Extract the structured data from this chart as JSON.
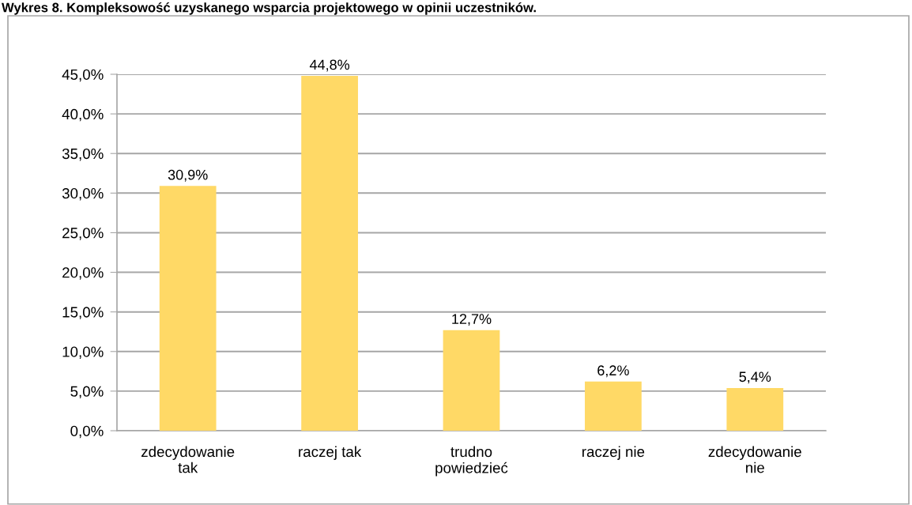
{
  "chart_data": {
    "type": "bar",
    "title": "Wykres 8. Kompleksowość uzyskanego wsparcia projektowego w opinii uczestników.",
    "categories": [
      "zdecydowanie\ntak",
      "raczej tak",
      "trudno\npowiedzieć",
      "raczej nie",
      "zdecydowanie\nnie"
    ],
    "values": [
      30.9,
      44.8,
      12.7,
      6.2,
      5.4
    ],
    "color": "#ffd966",
    "value_labels": [
      "30,9%",
      "44,8%",
      "12,7%",
      "6,2%",
      "5,4%"
    ],
    "ylim": [
      0,
      45
    ],
    "yticks": [
      {
        "value": 0,
        "label": "0,0%"
      },
      {
        "value": 5,
        "label": "5,0%"
      },
      {
        "value": 10,
        "label": "10,0%"
      },
      {
        "value": 15,
        "label": "15,0%"
      },
      {
        "value": 20,
        "label": "20,0%"
      },
      {
        "value": 25,
        "label": "25,0%"
      },
      {
        "value": 30,
        "label": "30,0%"
      },
      {
        "value": 35,
        "label": "35,0%"
      },
      {
        "value": 40,
        "label": "40,0%"
      },
      {
        "value": 45,
        "label": "45,0%"
      }
    ],
    "grid": "y",
    "legend": false
  }
}
